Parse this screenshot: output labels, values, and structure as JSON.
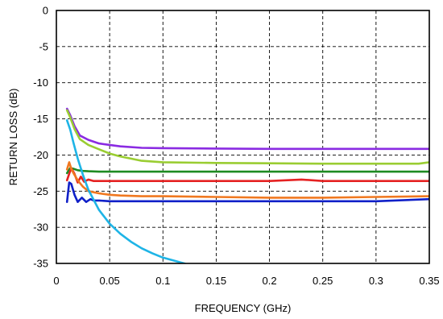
{
  "chart_data": {
    "type": "line",
    "title": "",
    "xlabel": "FREQUENCY (GHz)",
    "ylabel": "RETURN LOSS (dB)",
    "xlim": [
      0,
      0.35
    ],
    "ylim": [
      -35,
      0
    ],
    "xticks": [
      0,
      0.05,
      0.1,
      0.15,
      0.2,
      0.25,
      0.3,
      0.35
    ],
    "xtick_labels": [
      "0",
      "0.05",
      "0.1",
      "0.15",
      "0.2",
      "0.25",
      "0.3",
      "0.35"
    ],
    "yticks": [
      0,
      -5,
      -10,
      -15,
      -20,
      -25,
      -30,
      -35
    ],
    "ytick_labels": [
      "0",
      "-5",
      "-10",
      "-15",
      "-20",
      "-25",
      "-30",
      "-35"
    ],
    "grid": true,
    "grid_style": "dashed",
    "legend": "none",
    "series": [
      {
        "color": "#8a2be2",
        "x": [
          0.01,
          0.013,
          0.017,
          0.022,
          0.03,
          0.04,
          0.05,
          0.06,
          0.08,
          0.1,
          0.15,
          0.2,
          0.25,
          0.3,
          0.35
        ],
        "y": [
          -13.6,
          -14.5,
          -16.0,
          -17.3,
          -17.9,
          -18.4,
          -18.6,
          -18.8,
          -19.0,
          -19.05,
          -19.1,
          -19.15,
          -19.15,
          -19.15,
          -19.15
        ]
      },
      {
        "color": "#9acd32",
        "x": [
          0.01,
          0.013,
          0.017,
          0.022,
          0.03,
          0.04,
          0.05,
          0.06,
          0.07,
          0.08,
          0.1,
          0.15,
          0.2,
          0.25,
          0.3,
          0.34,
          0.35
        ],
        "y": [
          -13.8,
          -14.8,
          -16.4,
          -17.8,
          -18.6,
          -19.2,
          -19.8,
          -20.2,
          -20.5,
          -20.8,
          -21.0,
          -21.1,
          -21.15,
          -21.2,
          -21.2,
          -21.2,
          -21.0
        ]
      },
      {
        "color": "#1e8b22",
        "x": [
          0.01,
          0.013,
          0.016,
          0.02,
          0.025,
          0.03,
          0.04,
          0.05,
          0.1,
          0.15,
          0.2,
          0.25,
          0.3,
          0.35
        ],
        "y": [
          -22.5,
          -21.8,
          -21.9,
          -22.1,
          -22.2,
          -22.25,
          -22.3,
          -22.3,
          -22.3,
          -22.3,
          -22.3,
          -22.3,
          -22.3,
          -22.3
        ]
      },
      {
        "color": "#e52222",
        "x": [
          0.01,
          0.012,
          0.014,
          0.017,
          0.02,
          0.023,
          0.026,
          0.03,
          0.035,
          0.04,
          0.05,
          0.1,
          0.15,
          0.2,
          0.23,
          0.25,
          0.3,
          0.35
        ],
        "y": [
          -23.5,
          -22.6,
          -21.8,
          -22.6,
          -23.8,
          -23.0,
          -23.7,
          -23.4,
          -23.6,
          -23.6,
          -23.6,
          -23.6,
          -23.6,
          -23.6,
          -23.4,
          -23.6,
          -23.6,
          -23.6
        ]
      },
      {
        "color": "#f07820",
        "x": [
          0.01,
          0.012,
          0.014,
          0.016,
          0.02,
          0.025,
          0.03,
          0.04,
          0.05,
          0.06,
          0.08,
          0.1,
          0.15,
          0.2,
          0.25,
          0.3,
          0.35
        ],
        "y": [
          -22.0,
          -21.0,
          -21.9,
          -22.5,
          -23.5,
          -24.4,
          -25.0,
          -25.3,
          -25.5,
          -25.6,
          -25.7,
          -25.7,
          -25.8,
          -25.9,
          -25.9,
          -25.8,
          -25.7
        ]
      },
      {
        "color": "#1020c8",
        "x": [
          0.01,
          0.012,
          0.014,
          0.017,
          0.02,
          0.024,
          0.028,
          0.032,
          0.035,
          0.04,
          0.05,
          0.1,
          0.15,
          0.2,
          0.25,
          0.3,
          0.35
        ],
        "y": [
          -26.5,
          -23.8,
          -24.0,
          -25.5,
          -26.5,
          -25.9,
          -26.5,
          -26.1,
          -26.3,
          -26.3,
          -26.4,
          -26.4,
          -26.4,
          -26.4,
          -26.4,
          -26.4,
          -26.1
        ]
      },
      {
        "color": "#1eb4e6",
        "x": [
          0.01,
          0.013,
          0.016,
          0.02,
          0.025,
          0.03,
          0.04,
          0.05,
          0.06,
          0.07,
          0.08,
          0.09,
          0.1,
          0.11,
          0.12,
          0.124
        ],
        "y": [
          -15.2,
          -16.5,
          -18.3,
          -20.5,
          -22.8,
          -24.8,
          -27.6,
          -29.5,
          -30.9,
          -32.0,
          -32.9,
          -33.6,
          -34.2,
          -34.6,
          -35.0,
          -35.2
        ]
      }
    ]
  }
}
